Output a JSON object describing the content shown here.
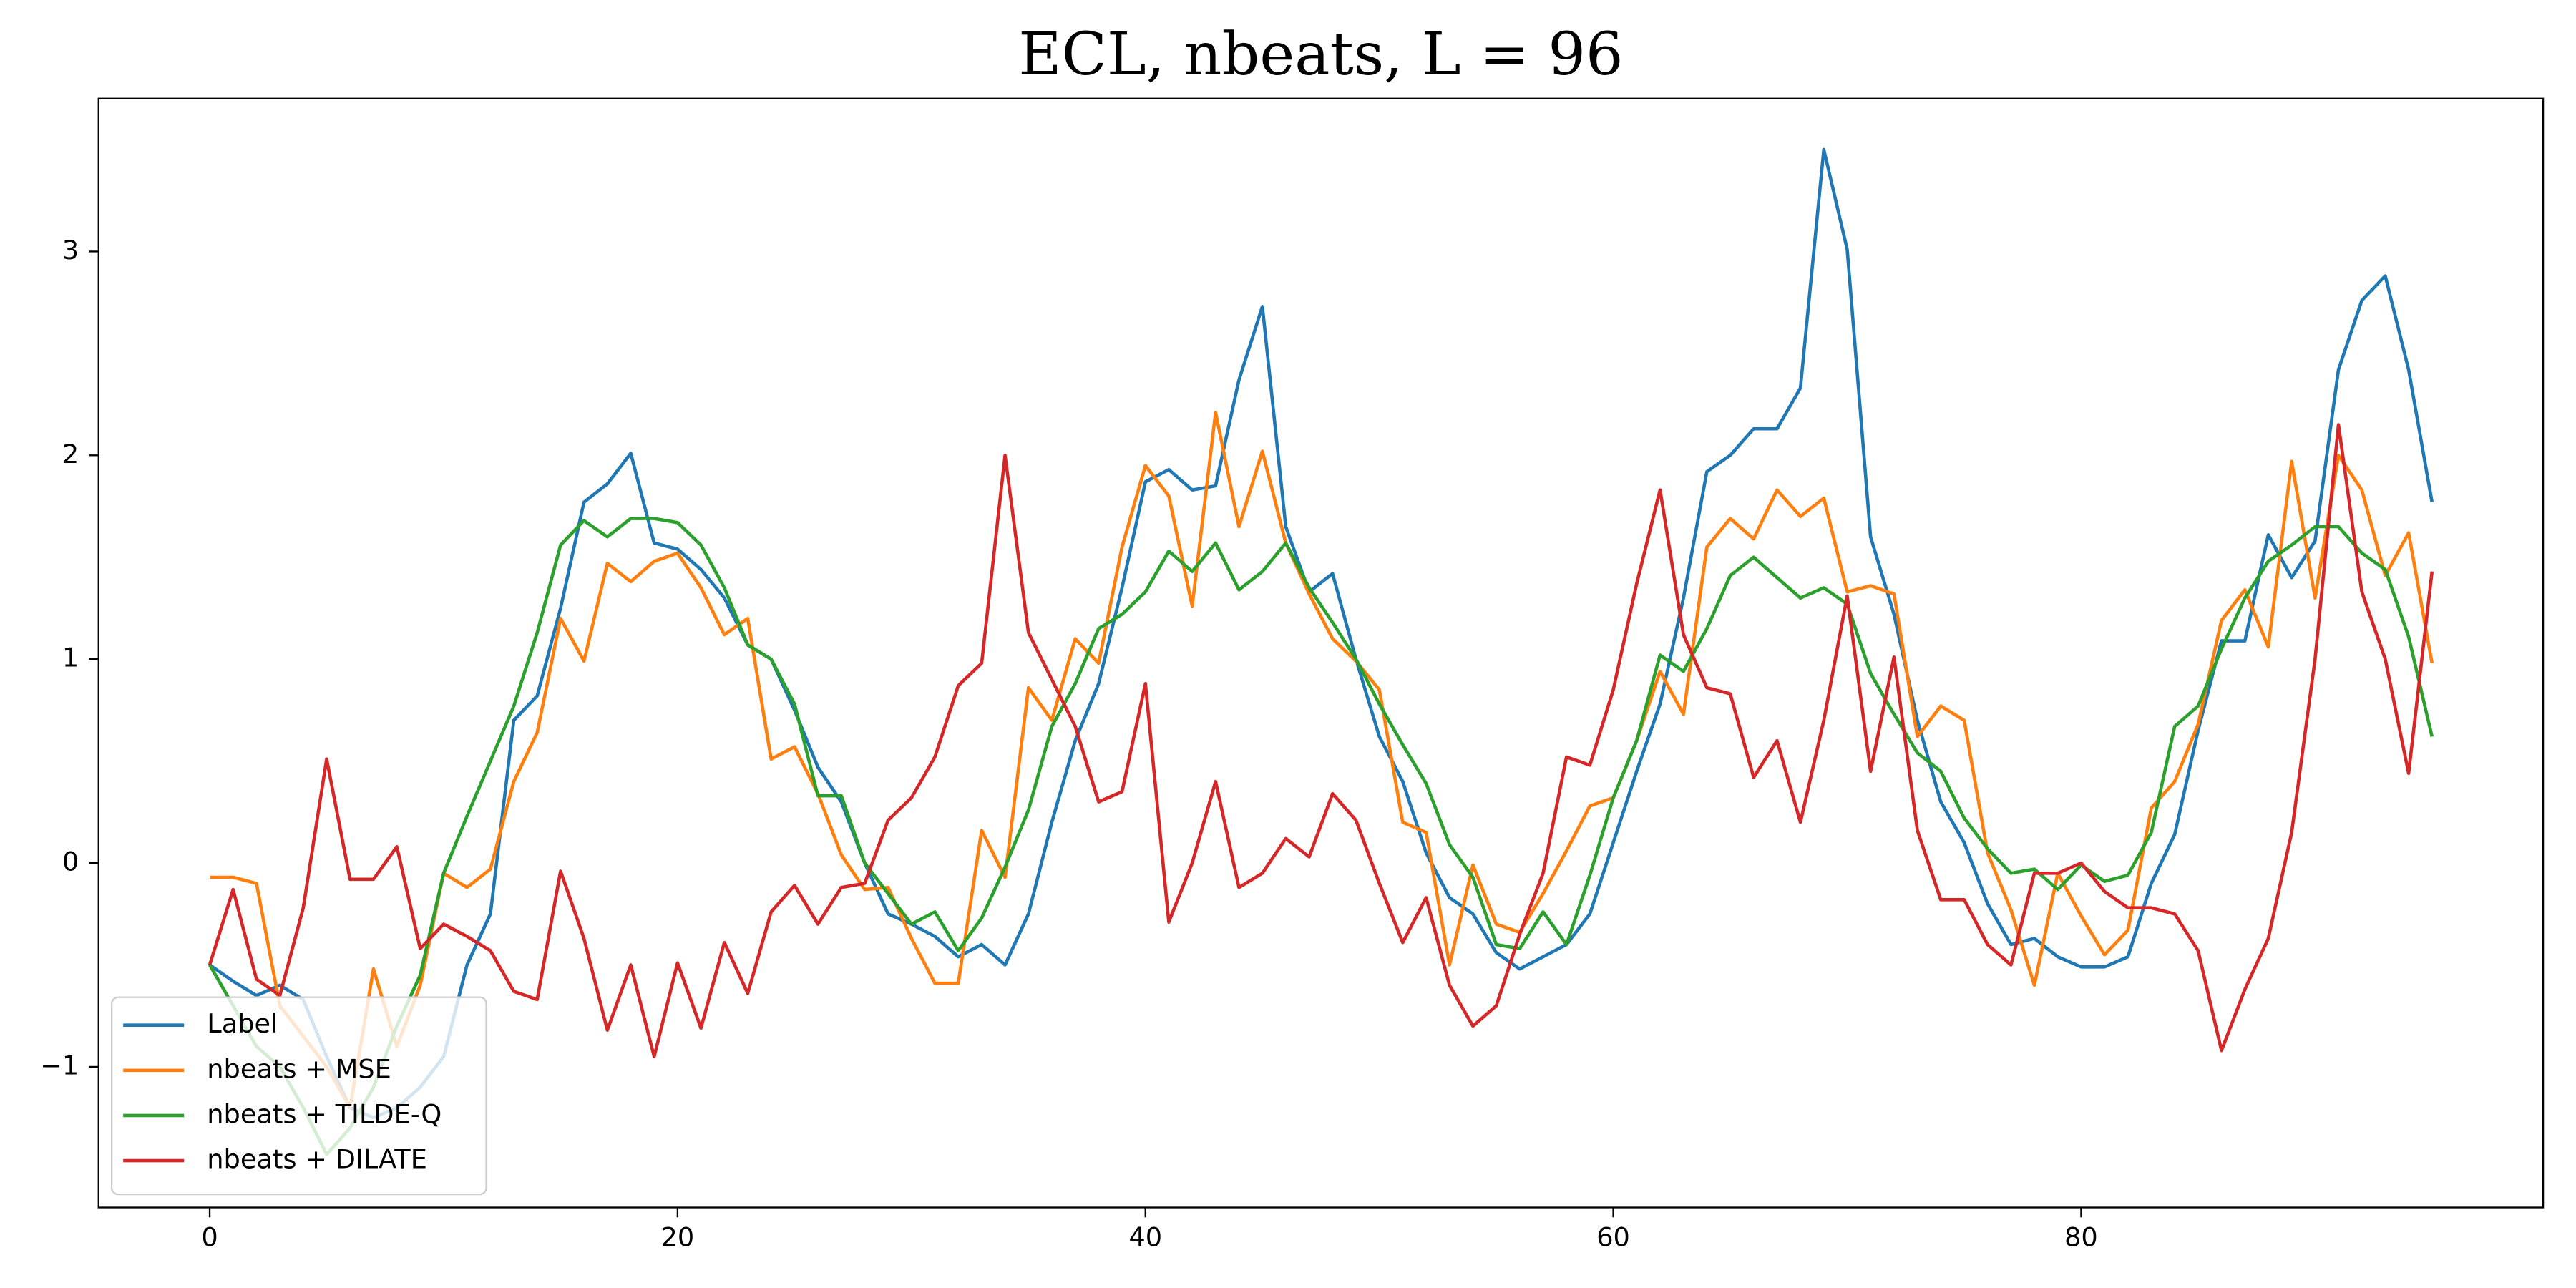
{
  "chart_data": {
    "type": "line",
    "title": "ECL, nbeats, L = 96",
    "x": [
      0,
      1,
      2,
      3,
      4,
      5,
      6,
      7,
      8,
      9,
      10,
      11,
      12,
      13,
      14,
      15,
      16,
      17,
      18,
      19,
      20,
      21,
      22,
      23,
      24,
      25,
      26,
      27,
      28,
      29,
      30,
      31,
      32,
      33,
      34,
      35,
      36,
      37,
      38,
      39,
      40,
      41,
      42,
      43,
      44,
      45,
      46,
      47,
      48,
      49,
      50,
      51,
      52,
      53,
      54,
      55,
      56,
      57,
      58,
      59,
      60,
      61,
      62,
      63,
      64,
      65,
      66,
      67,
      68,
      69,
      70,
      71,
      72,
      73,
      74,
      75,
      76,
      77,
      78,
      79,
      80,
      81,
      82,
      83,
      84,
      85,
      86,
      87,
      88,
      89,
      90,
      91,
      92,
      93,
      94,
      95
    ],
    "series": [
      {
        "name": "Label",
        "color": "#1f77b4",
        "values": [
          -0.5,
          -0.58,
          -0.65,
          -0.6,
          -0.67,
          -0.95,
          -1.2,
          -1.25,
          -1.2,
          -1.1,
          -0.95,
          -0.5,
          -0.25,
          0.7,
          0.82,
          1.25,
          1.77,
          1.86,
          2.01,
          1.57,
          1.54,
          1.44,
          1.3,
          1.07,
          1.0,
          0.75,
          0.47,
          0.3,
          0.0,
          -0.25,
          -0.3,
          -0.36,
          -0.46,
          -0.4,
          -0.5,
          -0.25,
          0.2,
          0.6,
          0.88,
          1.35,
          1.87,
          1.93,
          1.83,
          1.85,
          2.37,
          2.73,
          1.65,
          1.33,
          1.42,
          1.0,
          0.62,
          0.4,
          0.05,
          -0.17,
          -0.25,
          -0.44,
          -0.52,
          -0.46,
          -0.4,
          -0.25,
          0.1,
          0.45,
          0.78,
          1.3,
          1.92,
          2.0,
          2.13,
          2.13,
          2.33,
          3.5,
          3.01,
          1.6,
          1.22,
          0.7,
          0.3,
          0.1,
          -0.2,
          -0.4,
          -0.37,
          -0.46,
          -0.51,
          -0.51,
          -0.46,
          -0.1,
          0.14,
          0.65,
          1.09,
          1.09,
          1.61,
          1.4,
          1.58,
          2.42,
          2.76,
          2.88,
          2.42,
          1.77
        ]
      },
      {
        "name": "nbeats + MSE",
        "color": "#ff7f0e",
        "values": [
          -0.07,
          -0.07,
          -0.1,
          -0.7,
          -0.85,
          -1.0,
          -1.2,
          -0.52,
          -0.9,
          -0.6,
          -0.05,
          -0.12,
          -0.03,
          0.4,
          0.64,
          1.2,
          0.99,
          1.47,
          1.38,
          1.48,
          1.52,
          1.35,
          1.12,
          1.2,
          0.51,
          0.57,
          0.34,
          0.04,
          -0.13,
          -0.12,
          -0.37,
          -0.59,
          -0.59,
          0.16,
          -0.07,
          0.86,
          0.7,
          1.1,
          0.98,
          1.55,
          1.95,
          1.8,
          1.26,
          2.21,
          1.65,
          2.02,
          1.57,
          1.32,
          1.1,
          0.99,
          0.85,
          0.2,
          0.15,
          -0.5,
          -0.01,
          -0.3,
          -0.34,
          -0.15,
          0.06,
          0.28,
          0.32,
          0.6,
          0.94,
          0.73,
          1.55,
          1.69,
          1.59,
          1.83,
          1.7,
          1.79,
          1.33,
          1.36,
          1.32,
          0.62,
          0.77,
          0.7,
          0.05,
          -0.23,
          -0.6,
          -0.05,
          -0.26,
          -0.45,
          -0.33,
          0.27,
          0.4,
          0.68,
          1.19,
          1.34,
          1.06,
          1.97,
          1.3,
          2.0,
          1.83,
          1.41,
          1.62,
          0.98
        ]
      },
      {
        "name": "nbeats + TILDE-Q",
        "color": "#2ca02c",
        "values": [
          -0.5,
          -0.7,
          -0.9,
          -1.0,
          -1.2,
          -1.43,
          -1.3,
          -1.1,
          -0.8,
          -0.55,
          -0.05,
          0.23,
          0.5,
          0.77,
          1.13,
          1.56,
          1.68,
          1.6,
          1.69,
          1.69,
          1.67,
          1.56,
          1.35,
          1.07,
          1.0,
          0.78,
          0.33,
          0.33,
          0.0,
          -0.15,
          -0.3,
          -0.24,
          -0.43,
          -0.27,
          -0.02,
          0.26,
          0.67,
          0.88,
          1.15,
          1.22,
          1.33,
          1.53,
          1.43,
          1.57,
          1.34,
          1.43,
          1.57,
          1.35,
          1.18,
          1.0,
          0.78,
          0.58,
          0.39,
          0.09,
          -0.07,
          -0.4,
          -0.42,
          -0.24,
          -0.4,
          -0.06,
          0.32,
          0.6,
          1.02,
          0.94,
          1.15,
          1.41,
          1.5,
          1.4,
          1.3,
          1.35,
          1.27,
          0.93,
          0.73,
          0.54,
          0.45,
          0.22,
          0.07,
          -0.05,
          -0.03,
          -0.13,
          -0.01,
          -0.09,
          -0.06,
          0.15,
          0.67,
          0.77,
          1.05,
          1.3,
          1.48,
          1.56,
          1.65,
          1.65,
          1.52,
          1.44,
          1.11,
          0.62
        ]
      },
      {
        "name": "nbeats + DILATE",
        "color": "#d62728",
        "values": [
          -0.5,
          -0.13,
          -0.57,
          -0.65,
          -0.22,
          0.51,
          -0.08,
          -0.08,
          0.08,
          -0.42,
          -0.3,
          -0.36,
          -0.43,
          -0.63,
          -0.67,
          -0.04,
          -0.37,
          -0.82,
          -0.5,
          -0.95,
          -0.49,
          -0.81,
          -0.39,
          -0.64,
          -0.24,
          -0.11,
          -0.3,
          -0.12,
          -0.1,
          0.21,
          0.32,
          0.52,
          0.87,
          0.98,
          2.0,
          1.13,
          0.9,
          0.67,
          0.3,
          0.35,
          0.88,
          -0.29,
          0.0,
          0.4,
          -0.12,
          -0.05,
          0.12,
          0.03,
          0.34,
          0.21,
          -0.1,
          -0.39,
          -0.17,
          -0.6,
          -0.8,
          -0.7,
          -0.35,
          -0.05,
          0.52,
          0.48,
          0.85,
          1.37,
          1.83,
          1.12,
          0.86,
          0.83,
          0.42,
          0.6,
          0.2,
          0.7,
          1.31,
          0.45,
          1.01,
          0.16,
          -0.18,
          -0.18,
          -0.4,
          -0.5,
          -0.05,
          -0.05,
          0.0,
          -0.14,
          -0.22,
          -0.22,
          -0.25,
          -0.43,
          -0.92,
          -0.62,
          -0.37,
          0.15,
          1.0,
          2.15,
          1.33,
          1.0,
          0.44,
          1.43
        ]
      }
    ],
    "xlim": [
      -4.75,
      99.75
    ],
    "ylim": [
      -1.69,
      3.75
    ],
    "xticks": [
      0,
      20,
      40,
      60,
      80
    ],
    "yticks": [
      {
        "value": -1,
        "label": "−1"
      },
      0,
      1,
      2,
      3
    ],
    "grid": false,
    "legend": "lower left"
  }
}
